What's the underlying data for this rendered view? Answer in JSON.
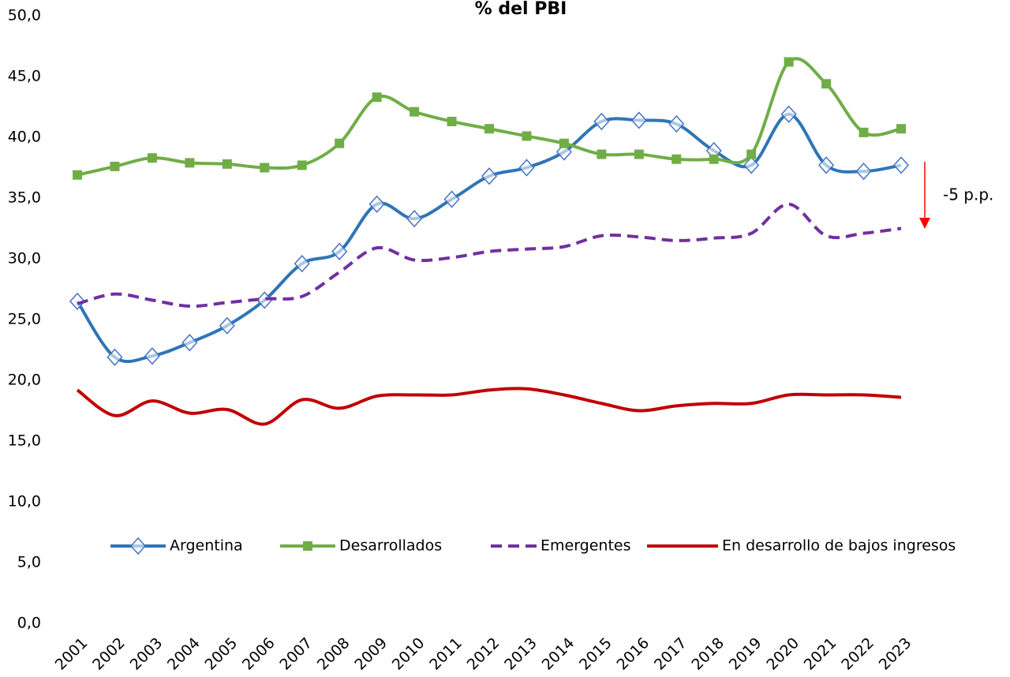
{
  "chart_data": {
    "type": "line",
    "title": "% del PBI",
    "categories": [
      "2001",
      "2002",
      "2003",
      "2004",
      "2005",
      "2006",
      "2007",
      "2008",
      "2009",
      "2010",
      "2011",
      "2012",
      "2013",
      "2014",
      "2015",
      "2016",
      "2017",
      "2018",
      "2019",
      "2020",
      "2021",
      "2022",
      "2023"
    ],
    "series": [
      {
        "name": "Argentina",
        "color": "#2e75b6",
        "marker": "diamond",
        "marker_color": "#4472c4",
        "values": [
          26.5,
          21.9,
          22.0,
          23.1,
          24.5,
          26.6,
          29.6,
          30.6,
          34.5,
          33.3,
          34.9,
          36.8,
          37.5,
          38.8,
          41.3,
          41.4,
          41.1,
          38.9,
          37.7,
          41.9,
          37.7,
          37.2,
          37.7
        ]
      },
      {
        "name": "Desarrollados",
        "color": "#70ad47",
        "marker": "square",
        "marker_color": "#70ad47",
        "values": [
          36.9,
          37.6,
          38.3,
          37.9,
          37.8,
          37.5,
          37.7,
          39.5,
          43.3,
          42.1,
          41.3,
          40.7,
          40.1,
          39.5,
          38.6,
          38.6,
          38.2,
          38.2,
          38.6,
          46.2,
          44.4,
          40.4,
          40.7
        ]
      },
      {
        "name": "Emergentes",
        "color": "#7030a0",
        "dash": true,
        "values": [
          26.3,
          27.1,
          26.6,
          26.1,
          26.4,
          26.7,
          26.9,
          28.9,
          30.9,
          29.9,
          30.1,
          30.6,
          30.8,
          31.0,
          31.9,
          31.8,
          31.5,
          31.7,
          32.1,
          34.5,
          31.9,
          32.1,
          32.5
        ]
      },
      {
        "name": "En desarrollo de bajos ingresos",
        "color": "#c00000",
        "values": [
          19.2,
          17.1,
          18.3,
          17.3,
          17.6,
          16.4,
          18.4,
          17.7,
          18.7,
          18.8,
          18.8,
          19.2,
          19.3,
          18.8,
          18.1,
          17.5,
          17.9,
          18.1,
          18.1,
          18.8,
          18.8,
          18.8,
          18.6
        ]
      }
    ],
    "ylim": [
      0,
      50
    ],
    "yticks": [
      {
        "value": 0,
        "label": "0,0"
      },
      {
        "value": 5,
        "label": "5,0"
      },
      {
        "value": 10,
        "label": "10,0"
      },
      {
        "value": 15,
        "label": "15,0"
      },
      {
        "value": 20,
        "label": "20,0"
      },
      {
        "value": 25,
        "label": "25,0"
      },
      {
        "value": 30,
        "label": "30,0"
      },
      {
        "value": 35,
        "label": "35,0"
      },
      {
        "value": 40,
        "label": "40,0"
      },
      {
        "value": 45,
        "label": "45,0"
      },
      {
        "value": 50,
        "label": "50,0"
      }
    ],
    "smooth": true,
    "annotation": "-5 p.p.",
    "annotation_color": "#ff0000"
  }
}
